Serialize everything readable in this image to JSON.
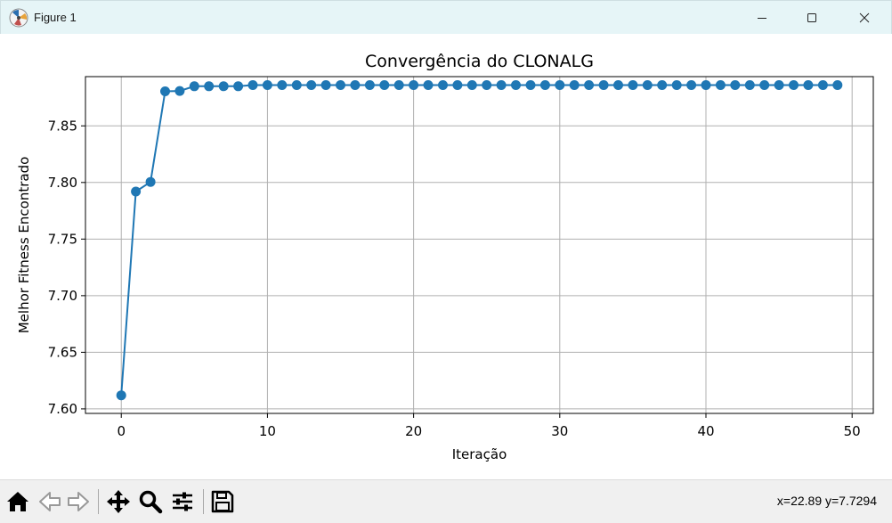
{
  "window": {
    "title": "Figure 1",
    "controls": [
      "minimize",
      "maximize",
      "close"
    ]
  },
  "toolbar": {
    "buttons": [
      {
        "name": "home",
        "icon": "home-icon"
      },
      {
        "name": "back",
        "icon": "back-arrow-icon"
      },
      {
        "name": "forward",
        "icon": "forward-arrow-icon"
      },
      {
        "name": "pan",
        "icon": "move-icon"
      },
      {
        "name": "zoom",
        "icon": "magnifier-icon"
      },
      {
        "name": "configure-subplots",
        "icon": "sliders-icon"
      },
      {
        "name": "save",
        "icon": "floppy-disk-icon"
      }
    ],
    "coords": "x=22.89 y=7.7294"
  },
  "chart_data": {
    "type": "line",
    "title": "Convergência do CLONALG",
    "xlabel": "Iteração",
    "ylabel": "Melhor Fitness Encontrado",
    "xlim": [
      -2.45,
      51.45
    ],
    "ylim": [
      7.596,
      7.8935
    ],
    "xticks": [
      0,
      10,
      20,
      30,
      40,
      50
    ],
    "yticks": [
      7.6,
      7.65,
      7.7,
      7.75,
      7.8,
      7.85
    ],
    "ytick_labels": [
      "7.60",
      "7.65",
      "7.70",
      "7.75",
      "7.80",
      "7.85"
    ],
    "grid": true,
    "color": "#1f77b4",
    "marker": "circle",
    "x": [
      0,
      1,
      2,
      3,
      4,
      5,
      6,
      7,
      8,
      9,
      10,
      11,
      12,
      13,
      14,
      15,
      16,
      17,
      18,
      19,
      20,
      21,
      22,
      23,
      24,
      25,
      26,
      27,
      28,
      29,
      30,
      31,
      32,
      33,
      34,
      35,
      36,
      37,
      38,
      39,
      40,
      41,
      42,
      43,
      44,
      45,
      46,
      47,
      48,
      49
    ],
    "y": [
      7.612,
      7.792,
      7.8005,
      7.8805,
      7.8808,
      7.885,
      7.885,
      7.885,
      7.885,
      7.886,
      7.886,
      7.886,
      7.886,
      7.886,
      7.886,
      7.886,
      7.886,
      7.886,
      7.886,
      7.886,
      7.886,
      7.886,
      7.886,
      7.886,
      7.886,
      7.886,
      7.886,
      7.886,
      7.886,
      7.886,
      7.886,
      7.886,
      7.886,
      7.886,
      7.886,
      7.886,
      7.886,
      7.886,
      7.886,
      7.886,
      7.886,
      7.886,
      7.886,
      7.886,
      7.886,
      7.886,
      7.886,
      7.886,
      7.886,
      7.886
    ]
  }
}
